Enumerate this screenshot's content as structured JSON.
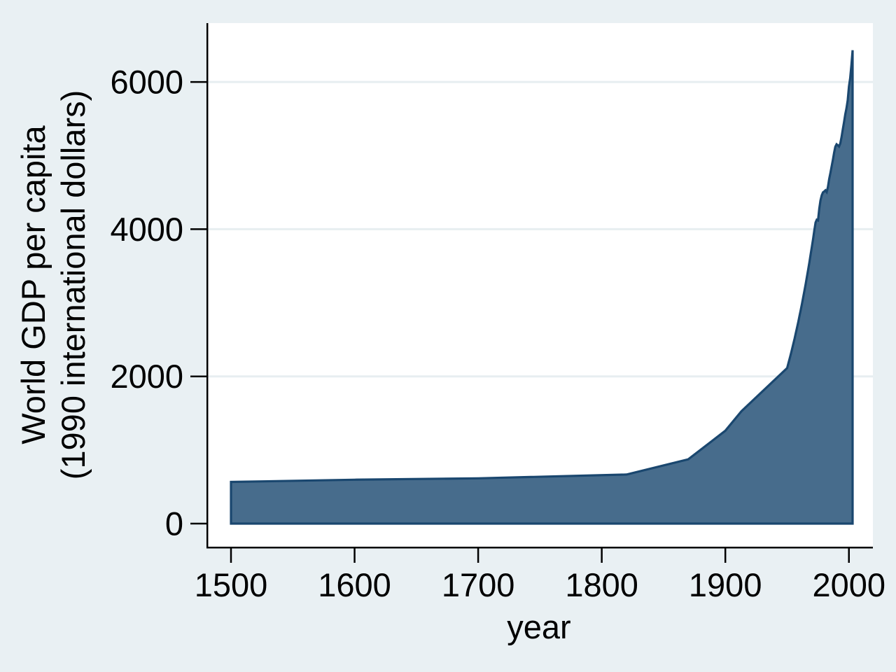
{
  "chart_data": {
    "type": "area",
    "title": "",
    "xlabel": "year",
    "ylabel": "World GDP per capita (1990 international dollars)",
    "ylabel_lines": [
      "World GDP per capita",
      "(1990 international dollars)"
    ],
    "series_name": "World GDP per capita",
    "x_ticks": [
      1500,
      1600,
      1700,
      1800,
      1900,
      2000
    ],
    "y_ticks": [
      0,
      2000,
      4000,
      6000
    ],
    "xlim": [
      1481,
      2020
    ],
    "ylim": [
      0,
      6800
    ],
    "grid": true,
    "legend": "none",
    "points": [
      [
        1500,
        566
      ],
      [
        1600,
        596
      ],
      [
        1700,
        615
      ],
      [
        1820,
        667
      ],
      [
        1870,
        873
      ],
      [
        1900,
        1262
      ],
      [
        1913,
        1526
      ],
      [
        1950,
        2113
      ],
      [
        1951,
        2175
      ],
      [
        1952,
        2239
      ],
      [
        1953,
        2304
      ],
      [
        1954,
        2371
      ],
      [
        1955,
        2441
      ],
      [
        1956,
        2512
      ],
      [
        1957,
        2586
      ],
      [
        1958,
        2662
      ],
      [
        1959,
        2739
      ],
      [
        1960,
        2819
      ],
      [
        1961,
        2902
      ],
      [
        1962,
        2987
      ],
      [
        1963,
        3074
      ],
      [
        1964,
        3164
      ],
      [
        1965,
        3256
      ],
      [
        1966,
        3351
      ],
      [
        1967,
        3449
      ],
      [
        1968,
        3550
      ],
      [
        1969,
        3654
      ],
      [
        1970,
        3760
      ],
      [
        1971,
        3870
      ],
      [
        1972,
        3983
      ],
      [
        1973,
        4091
      ],
      [
        1974,
        4128
      ],
      [
        1975,
        4120
      ],
      [
        1976,
        4280
      ],
      [
        1977,
        4390
      ],
      [
        1978,
        4460
      ],
      [
        1979,
        4500
      ],
      [
        1980,
        4512
      ],
      [
        1981,
        4528
      ],
      [
        1982,
        4505
      ],
      [
        1983,
        4571
      ],
      [
        1984,
        4680
      ],
      [
        1985,
        4764
      ],
      [
        1986,
        4850
      ],
      [
        1987,
        4940
      ],
      [
        1988,
        5040
      ],
      [
        1989,
        5120
      ],
      [
        1990,
        5154
      ],
      [
        1991,
        5139
      ],
      [
        1992,
        5123
      ],
      [
        1993,
        5164
      ],
      [
        1994,
        5250
      ],
      [
        1995,
        5350
      ],
      [
        1996,
        5450
      ],
      [
        1997,
        5560
      ],
      [
        1998,
        5640
      ],
      [
        1999,
        5750
      ],
      [
        2000,
        5940
      ],
      [
        2001,
        6049
      ],
      [
        2002,
        6230
      ],
      [
        2003,
        6432
      ]
    ]
  },
  "colors": {
    "background": "#E9F0F3",
    "plot_background": "#FFFFFF",
    "gridline": "#E7EEF1",
    "area_fill": "#476C8C",
    "area_stroke": "#1A476F",
    "axis": "#000000",
    "text": "#000000"
  }
}
